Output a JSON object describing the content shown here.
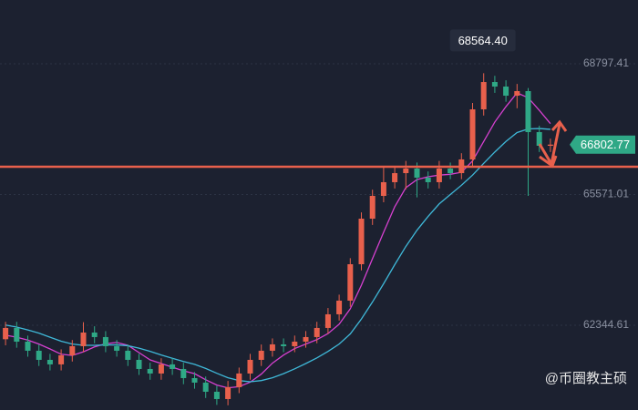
{
  "chart_data": {
    "type": "candlestick",
    "open": [
      62000,
      62278,
      61940,
      61716,
      61491,
      61379,
      61603,
      61828,
      62165,
      62053,
      61828,
      61716,
      61491,
      61266,
      61154,
      61379,
      61266,
      61041,
      60929,
      60704,
      60524,
      60817,
      61154,
      61491,
      61716,
      61873,
      61828,
      61940,
      62053,
      62278,
      62615,
      62952,
      63851,
      64975,
      65537,
      65875,
      66099,
      66212,
      65987,
      65875,
      66212,
      66099,
      66437,
      67673,
      68347,
      68235,
      68010,
      68123,
      67111,
      66774
    ],
    "high": [
      62430,
      62430,
      62090,
      61870,
      61640,
      61750,
      61980,
      62420,
      62320,
      62200,
      61980,
      61870,
      61640,
      61420,
      61530,
      61530,
      61420,
      61190,
      61080,
      60850,
      60970,
      61300,
      61640,
      61870,
      62020,
      62020,
      62090,
      62200,
      62430,
      62770,
      63100,
      64000,
      65130,
      65690,
      66250,
      66250,
      66400,
      66360,
      66140,
      66400,
      66360,
      66590,
      67830,
      68564.4,
      68500,
      68390,
      68300,
      68200,
      67270,
      66950
    ],
    "low": [
      61850,
      61790,
      61570,
      61340,
      61230,
      61230,
      61450,
      61680,
      61900,
      61680,
      61570,
      61340,
      61120,
      61000,
      61000,
      61120,
      60890,
      60780,
      60550,
      60380,
      60370,
      60670,
      61000,
      61340,
      61570,
      61680,
      61680,
      61790,
      61900,
      62130,
      62460,
      62800,
      63700,
      64820,
      65380,
      65720,
      65700,
      65500,
      65720,
      65720,
      65950,
      65950,
      66280,
      67520,
      68080,
      67860,
      67700,
      65537,
      66620,
      66620
    ],
    "close": [
      62278,
      61940,
      61716,
      61491,
      61379,
      61603,
      61828,
      62165,
      62053,
      61828,
      61716,
      61491,
      61266,
      61154,
      61379,
      61266,
      61041,
      60929,
      60704,
      60524,
      60817,
      61154,
      61491,
      61716,
      61873,
      61828,
      61940,
      62053,
      62278,
      62615,
      62952,
      63851,
      64975,
      65537,
      65875,
      66099,
      66212,
      65987,
      65875,
      66212,
      66099,
      66437,
      67673,
      68347,
      68235,
      68010,
      68123,
      67111,
      66774,
      66802.77
    ],
    "up_color": "#e8604c",
    "down_color": "#2fa886",
    "overlays": [
      {
        "color": "#d640d0",
        "values": [
          62100,
          62050,
          61980,
          61880,
          61760,
          61630,
          61600,
          61690,
          61810,
          61890,
          61920,
          61850,
          61670,
          61490,
          61400,
          61310,
          61220,
          61150,
          61000,
          60870,
          60800,
          60830,
          60940,
          61140,
          61410,
          61610,
          61770,
          61880,
          61990,
          62140,
          62370,
          62750,
          63330,
          63990,
          64640,
          65270,
          65740,
          65940,
          66010,
          66050,
          66070,
          66120,
          66400,
          66880,
          67360,
          67740,
          68080,
          67960,
          67650,
          67320
        ]
      },
      {
        "color": "#3fb8d8",
        "values": [
          62350,
          62300,
          62230,
          62150,
          62050,
          61950,
          61880,
          61850,
          61850,
          61860,
          61860,
          61840,
          61780,
          61700,
          61610,
          61530,
          61450,
          61380,
          61280,
          61160,
          61050,
          60980,
          60950,
          60980,
          61050,
          61150,
          61270,
          61400,
          61540,
          61700,
          61880,
          62130,
          62500,
          62920,
          63370,
          63840,
          64290,
          64690,
          65030,
          65340,
          65570,
          65800,
          66050,
          66340,
          66620,
          66880,
          67100,
          67190,
          67200,
          67180
        ]
      }
    ],
    "ylim": [
      60253.5,
      70371.3
    ],
    "yticks": [
      62344.61,
      65571.01,
      68797.41
    ],
    "grid": true,
    "levels": [
      {
        "value": 66256,
        "color": "#e8604c"
      }
    ],
    "annotations": [
      {
        "value": 68564.4,
        "label": "68564.40"
      }
    ]
  },
  "watermark": "@币圈教主硕"
}
